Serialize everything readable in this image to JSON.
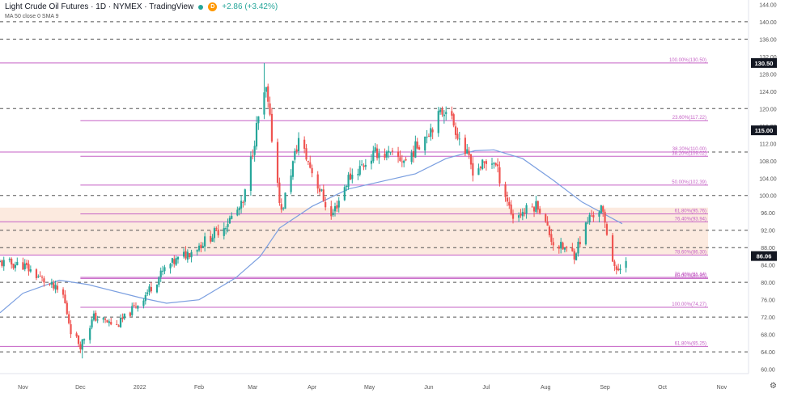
{
  "header": {
    "title": "Light Crude Oil Futures · 1D · NYMEX · TradingView",
    "badge": "D",
    "change": "+2.86 (+3.42%)",
    "indicator": "MA 50 close 0 SMA 9"
  },
  "icons": {
    "settings": "gear-icon",
    "status": "dot-icon"
  },
  "colors": {
    "bull": "#26a69a",
    "bear": "#ef5350",
    "ma": "#7b9fe0",
    "fib_line": "#c561c5",
    "band": "#fbe3d4",
    "price_tag": "#131722"
  },
  "chart_data": {
    "type": "candlestick",
    "title": "Light Crude Oil Futures",
    "interval": "1D",
    "exchange": "NYMEX",
    "source": "TradingView",
    "ylim": [
      59,
      145
    ],
    "y_ticks": [
      60,
      64,
      68,
      72,
      76,
      80,
      84,
      88,
      92,
      96,
      100,
      104,
      108,
      112,
      116,
      120,
      124,
      128,
      132,
      136,
      140,
      144
    ],
    "y_tick_labels": [
      "60.00",
      "64.00",
      "68.00",
      "72.00",
      "76.00",
      "80.00",
      "84.00",
      "88.00",
      "92.00",
      "96.00",
      "100.00",
      "104.00",
      "108.00",
      "112.00",
      "116.00",
      "120.00",
      "124.00",
      "128.00",
      "132.00",
      "136.00",
      "140.00",
      "144.00"
    ],
    "x_range": [
      "2021-10-20",
      "2022-11-15"
    ],
    "x_ticks": [
      {
        "date": "2021-11-01",
        "label": "Nov"
      },
      {
        "date": "2021-12-01",
        "label": "Dec"
      },
      {
        "date": "2022-01-01",
        "label": "2022"
      },
      {
        "date": "2022-02-01",
        "label": "Feb"
      },
      {
        "date": "2022-03-01",
        "label": "Mar"
      },
      {
        "date": "2022-04-01",
        "label": "Apr"
      },
      {
        "date": "2022-05-01",
        "label": "May"
      },
      {
        "date": "2022-06-01",
        "label": "Jun"
      },
      {
        "date": "2022-07-01",
        "label": "Jul"
      },
      {
        "date": "2022-08-01",
        "label": "Aug"
      },
      {
        "date": "2022-09-01",
        "label": "Sep"
      },
      {
        "date": "2022-10-01",
        "label": "Oct"
      },
      {
        "date": "2022-11-01",
        "label": "Nov"
      }
    ],
    "price_tags": [
      {
        "value": 130.5,
        "label": "130.50"
      },
      {
        "value": 115.0,
        "label": "115.00"
      },
      {
        "value": 86.06,
        "label": "86.06"
      }
    ],
    "horizontal_dashed": [
      64,
      72,
      80,
      88,
      92,
      100,
      110,
      120,
      136,
      140
    ],
    "support_resistance_band": [
      86.3,
      97.2
    ],
    "fib_levels": [
      {
        "value": 130.5,
        "start": "2021-10-20",
        "label": "100.00%(130.50)"
      },
      {
        "value": 117.22,
        "start": "2021-12-01",
        "label": "23.60%(117.22)"
      },
      {
        "value": 110.0,
        "start": "2021-10-20",
        "label": "38.20%(110.00)"
      },
      {
        "value": 109.02,
        "start": "2021-12-01",
        "label": "38.20%(109.02)"
      },
      {
        "value": 102.39,
        "start": "2021-12-01",
        "label": "50.00%(102.39)"
      },
      {
        "value": 95.76,
        "start": "2021-12-01",
        "label": "61.80%(95.76)"
      },
      {
        "value": 93.94,
        "start": "2021-10-20",
        "label": "76.40%(93.94)"
      },
      {
        "value": 86.3,
        "start": "2021-10-20",
        "label": "78.60%(86.30)"
      },
      {
        "value": 81.14,
        "start": "2021-12-01",
        "label": "76.40%(81.14)"
      },
      {
        "value": 80.9,
        "start": "2021-12-01",
        "label": "80.00%(80.90)"
      },
      {
        "value": 74.27,
        "start": "2021-12-01",
        "label": "100.00%(74.27)"
      },
      {
        "value": 65.25,
        "start": "2021-10-20",
        "label": "61.80%(65.25)"
      }
    ],
    "candles": {
      "anchors": [
        [
          "2021-10-20",
          84.5
        ],
        [
          "2021-11-01",
          84.0
        ],
        [
          "2021-11-10",
          81.0
        ],
        [
          "2021-11-22",
          77.0
        ],
        [
          "2021-11-26",
          69.0
        ],
        [
          "2021-12-01",
          65.5
        ],
        [
          "2021-12-08",
          72.0
        ],
        [
          "2021-12-20",
          70.0
        ],
        [
          "2022-01-01",
          75.5
        ],
        [
          "2022-01-15",
          83.5
        ],
        [
          "2022-02-01",
          88.5
        ],
        [
          "2022-02-14",
          93.0
        ],
        [
          "2022-02-24",
          98.0
        ],
        [
          "2022-03-04",
          118.0
        ],
        [
          "2022-03-08",
          124.0
        ],
        [
          "2022-03-16",
          96.0
        ],
        [
          "2022-03-25",
          113.0
        ],
        [
          "2022-04-11",
          95.0
        ],
        [
          "2022-04-20",
          104.0
        ],
        [
          "2022-05-05",
          110.0
        ],
        [
          "2022-05-20",
          108.0
        ],
        [
          "2022-06-01",
          115.0
        ],
        [
          "2022-06-10",
          120.5
        ],
        [
          "2022-06-24",
          106.0
        ],
        [
          "2022-07-05",
          108.0
        ],
        [
          "2022-07-15",
          95.0
        ],
        [
          "2022-07-28",
          98.0
        ],
        [
          "2022-08-05",
          89.0
        ],
        [
          "2022-08-16",
          86.5
        ],
        [
          "2022-08-24",
          95.0
        ],
        [
          "2022-08-30",
          97.0
        ],
        [
          "2022-09-07",
          82.0
        ],
        [
          "2022-09-12",
          86.06
        ]
      ],
      "extremes": [
        [
          "2022-03-07",
          130.5
        ],
        [
          "2021-12-02",
          62.5
        ]
      ]
    },
    "moving_average": {
      "name": "MA 50",
      "points": [
        [
          "2021-10-20",
          73.0
        ],
        [
          "2021-11-01",
          77.5
        ],
        [
          "2021-11-20",
          80.5
        ],
        [
          "2021-12-05",
          79.5
        ],
        [
          "2022-01-01",
          76.5
        ],
        [
          "2022-01-15",
          75.2
        ],
        [
          "2022-02-01",
          76.0
        ],
        [
          "2022-02-20",
          81.0
        ],
        [
          "2022-03-05",
          86.0
        ],
        [
          "2022-03-15",
          92.5
        ],
        [
          "2022-04-01",
          97.5
        ],
        [
          "2022-04-20",
          101.5
        ],
        [
          "2022-05-10",
          103.5
        ],
        [
          "2022-05-25",
          105.0
        ],
        [
          "2022-06-10",
          108.5
        ],
        [
          "2022-06-25",
          110.3
        ],
        [
          "2022-07-05",
          110.5
        ],
        [
          "2022-07-20",
          108.5
        ],
        [
          "2022-08-05",
          103.5
        ],
        [
          "2022-08-20",
          98.5
        ],
        [
          "2022-09-10",
          93.5
        ]
      ]
    }
  }
}
